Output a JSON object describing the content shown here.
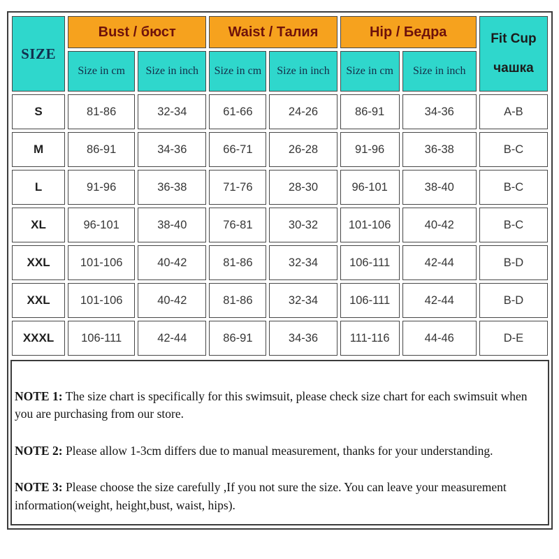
{
  "colors": {
    "teal": "#2fd7cc",
    "orange": "#f6a21e",
    "group_header_text": "#6e120b",
    "subheader_text": "#142c48",
    "border": "#474747"
  },
  "table": {
    "size_header": "SIZE",
    "groups": [
      {
        "label": "Bust / бюст"
      },
      {
        "label": "Waist / Талия"
      },
      {
        "label": "Hip / Бедра"
      }
    ],
    "fit_cup_line1": "Fit Cup",
    "fit_cup_line2": "чашка",
    "subheaders": [
      "Size in cm",
      "Size in inch",
      "Size in cm",
      "Size in inch",
      "Size in cm",
      "Size in inch"
    ],
    "rows": [
      [
        "S",
        "81-86",
        "32-34",
        "61-66",
        "24-26",
        "86-91",
        "34-36",
        "A-B"
      ],
      [
        "M",
        "86-91",
        "34-36",
        "66-71",
        "26-28",
        "91-96",
        "36-38",
        "B-C"
      ],
      [
        "L",
        "91-96",
        "36-38",
        "71-76",
        "28-30",
        "96-101",
        "38-40",
        "B-C"
      ],
      [
        "XL",
        "96-101",
        "38-40",
        "76-81",
        "30-32",
        "101-106",
        "40-42",
        "B-C"
      ],
      [
        "XXL",
        "101-106",
        "40-42",
        "81-86",
        "32-34",
        "106-111",
        "42-44",
        "B-D"
      ],
      [
        "XXL",
        "101-106",
        "40-42",
        "81-86",
        "32-34",
        "106-111",
        "42-44",
        "B-D"
      ],
      [
        "XXXL",
        "106-111",
        "42-44",
        "86-91",
        "34-36",
        "111-116",
        "44-46",
        "D-E"
      ]
    ]
  },
  "notes": [
    {
      "label": "NOTE 1:",
      "text": "The size chart is specifically for this swimsuit, please check size chart for each swimsuit when you are purchasing from our store."
    },
    {
      "label": "NOTE 2:",
      "text": "Please allow 1-3cm differs due to manual measurement, thanks for your understanding."
    },
    {
      "label": "NOTE 3:",
      "text": "Please choose the size carefully ,If you not sure the size. You can leave your measurement information(weight, height,bust, waist, hips)."
    }
  ]
}
